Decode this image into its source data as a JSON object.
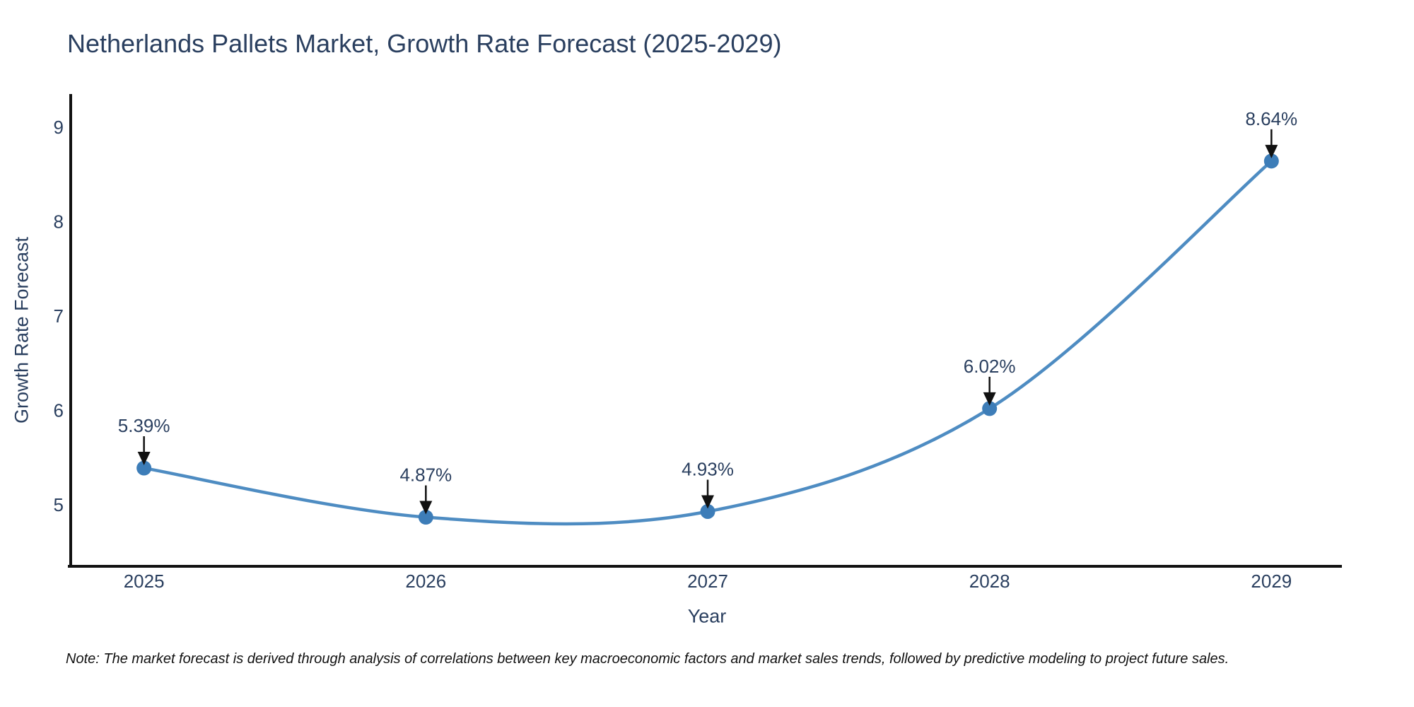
{
  "title": "Netherlands Pallets Market, Growth Rate Forecast (2025-2029)",
  "note": "Note: The market forecast is derived through analysis of correlations between key macroeconomic factors and market sales trends, followed by predictive modeling to project future sales.",
  "chart_data": {
    "type": "line",
    "title": "Netherlands Pallets Market, Growth Rate Forecast (2025-2029)",
    "x": [
      2025,
      2026,
      2027,
      2028,
      2029
    ],
    "x_ticks": [
      "2025",
      "2026",
      "2027",
      "2028",
      "2029"
    ],
    "series": [
      {
        "name": "Growth Rate Forecast",
        "values": [
          5.39,
          4.87,
          4.93,
          6.02,
          8.64
        ]
      }
    ],
    "point_labels": [
      "5.39%",
      "4.87%",
      "4.93%",
      "6.02%",
      "8.64%"
    ],
    "xlabel": "Year",
    "ylabel": "Growth Rate Forecast",
    "y_ticks": [
      "5",
      "6",
      "7",
      "8",
      "9"
    ],
    "y_tick_values": [
      5,
      6,
      7,
      8,
      9
    ],
    "xlim": [
      2024.74,
      2029.25
    ],
    "ylim": [
      4.35,
      9.35
    ],
    "grid": false,
    "legend": "none",
    "line_shape": "spline",
    "annotation_style": "down-arrow",
    "colors": {
      "line": "#4e8cc2",
      "marker": "#3d7db8",
      "text": "#2a3f5f",
      "axis": "#111111",
      "arrow": "#111111",
      "note_text": "#111111",
      "background": "#ffffff"
    }
  }
}
